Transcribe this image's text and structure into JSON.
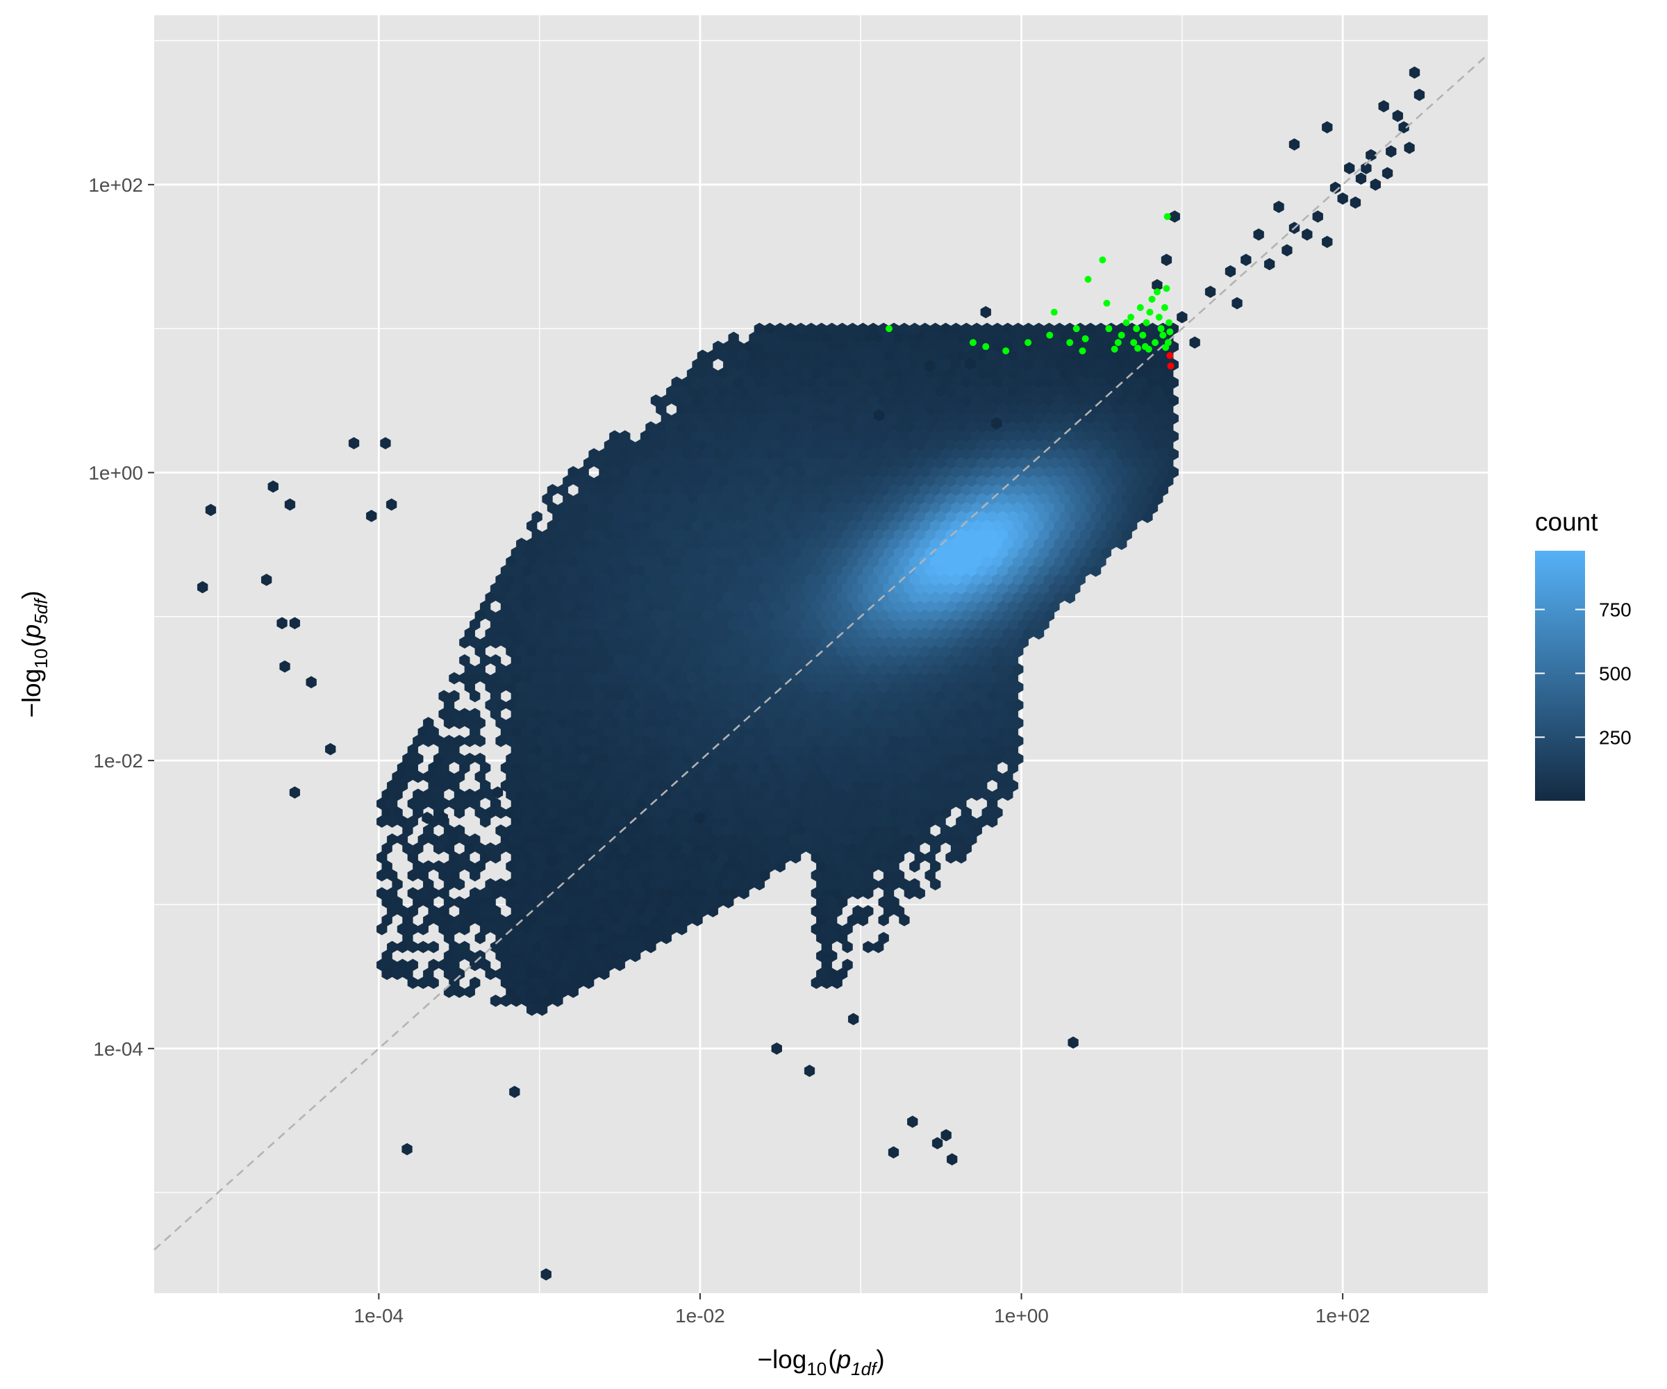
{
  "chart_data": {
    "type": "heatmap",
    "subtype": "hexbin",
    "scale": {
      "x": "log10",
      "y": "log10"
    },
    "xlim": [
      4e-06,
      800
    ],
    "ylim": [
      2e-06,
      1500
    ],
    "x_ticks": [
      0.0001,
      0.01,
      1,
      100
    ],
    "x_tick_labels": [
      "1e-04",
      "1e-02",
      "1e+00",
      "1e+02"
    ],
    "y_ticks": [
      0.0001,
      0.01,
      1,
      100
    ],
    "y_tick_labels": [
      "1e-04",
      "1e-02",
      "1e+00",
      "1e+02"
    ],
    "xlabel": {
      "prefix": "−log",
      "subscript": "10",
      "open": "(",
      "var": "p",
      "var_subscript": "1df",
      "close": ")"
    },
    "ylabel": {
      "prefix": "−log",
      "subscript": "10",
      "open": "(",
      "var": "p",
      "var_subscript": "5df",
      "close": ")"
    },
    "grid": true,
    "panel_background": "#e5e5e5",
    "reference_line": {
      "slope": 1,
      "intercept": 0,
      "style": "dashed",
      "color": "#b3b3b3"
    },
    "legend": {
      "title": "count",
      "position": "right",
      "ticks": [
        250,
        500,
        750
      ],
      "tick_labels": [
        "250",
        "500",
        "750"
      ],
      "range": [
        1,
        980
      ],
      "color_low": "#132b43",
      "color_high": "#56b1f7"
    },
    "density_model": {
      "core_center": [
        0.5,
        0.3
      ],
      "approx_peak_count": 950
    },
    "outlier_hexes": [
      [
        9e-06,
        0.55
      ],
      [
        8e-06,
        0.16
      ],
      [
        2.2e-05,
        0.8
      ],
      [
        2.8e-05,
        0.6
      ],
      [
        2e-05,
        0.18
      ],
      [
        2.5e-05,
        0.09
      ],
      [
        3e-05,
        0.09
      ],
      [
        2.6e-05,
        0.045
      ],
      [
        3.8e-05,
        0.035
      ],
      [
        5e-05,
        0.012
      ],
      [
        3e-05,
        0.006
      ],
      [
        7e-05,
        1.6
      ],
      [
        0.00011,
        1.6
      ],
      [
        0.00012,
        0.6
      ],
      [
        9e-05,
        0.5
      ],
      [
        0.00015,
        2e-05
      ],
      [
        0.0007,
        5e-05
      ],
      [
        0.0009,
        0.00035
      ],
      [
        0.0015,
        0.0006
      ],
      [
        0.0011,
        2.7e-06
      ],
      [
        0.03,
        0.0001
      ],
      [
        0.048,
        7e-05
      ],
      [
        0.09,
        0.00016
      ],
      [
        0.16,
        1.9e-05
      ],
      [
        0.21,
        3.1e-05
      ],
      [
        0.3,
        2.2e-05
      ],
      [
        0.34,
        2.5e-05
      ],
      [
        0.37,
        1.7e-05
      ],
      [
        2.1,
        0.00011
      ],
      [
        0.27,
        5.5
      ],
      [
        0.48,
        5.7
      ],
      [
        0.6,
        13
      ],
      [
        0.13,
        2.5
      ],
      [
        0.7,
        2.2
      ],
      [
        0.01,
        0.004
      ],
      [
        0.0002,
        0.004
      ],
      [
        0.00025,
        0.004
      ],
      [
        0.00055,
        0.006
      ],
      [
        0.0012,
        0.002
      ]
    ],
    "high_end_hexes": [
      [
        280,
        600
      ],
      [
        180,
        350
      ],
      [
        220,
        300
      ],
      [
        80,
        250
      ],
      [
        50,
        190
      ],
      [
        260,
        180
      ],
      [
        200,
        170
      ],
      [
        110,
        130
      ],
      [
        140,
        130
      ],
      [
        190,
        120
      ],
      [
        130,
        110
      ],
      [
        160,
        100
      ],
      [
        90,
        95
      ],
      [
        100,
        80
      ],
      [
        70,
        60
      ],
      [
        40,
        70
      ],
      [
        120,
        75
      ],
      [
        60,
        45
      ],
      [
        50,
        50
      ],
      [
        30,
        45
      ],
      [
        80,
        40
      ],
      [
        25,
        30
      ],
      [
        45,
        35
      ],
      [
        20,
        25
      ],
      [
        35,
        28
      ],
      [
        15,
        18
      ],
      [
        22,
        15
      ],
      [
        10,
        12
      ],
      [
        12,
        8
      ],
      [
        9,
        60
      ],
      [
        8,
        30
      ],
      [
        7,
        20
      ],
      [
        300,
        420
      ],
      [
        240,
        250
      ],
      [
        150,
        160
      ]
    ],
    "series": [
      {
        "name": "green",
        "color": "#00ff00",
        "points": [
          [
            0.15,
            10
          ],
          [
            0.5,
            8
          ],
          [
            0.6,
            7.5
          ],
          [
            0.8,
            7
          ],
          [
            1.1,
            8
          ],
          [
            1.5,
            9
          ],
          [
            1.6,
            13
          ],
          [
            2,
            8
          ],
          [
            2.2,
            10
          ],
          [
            2.4,
            7
          ],
          [
            2.5,
            8.5
          ],
          [
            2.6,
            22
          ],
          [
            3.2,
            30
          ],
          [
            3.4,
            15
          ],
          [
            3.5,
            10
          ],
          [
            3.8,
            7.2
          ],
          [
            4,
            8
          ],
          [
            4.2,
            9
          ],
          [
            4.5,
            11
          ],
          [
            4.8,
            12
          ],
          [
            5,
            8
          ],
          [
            5.2,
            10
          ],
          [
            5.5,
            14
          ],
          [
            5.7,
            9
          ],
          [
            5.9,
            7.5
          ],
          [
            6,
            11
          ],
          [
            6.3,
            13
          ],
          [
            6.5,
            16
          ],
          [
            6.8,
            8
          ],
          [
            7,
            18
          ],
          [
            7.2,
            12
          ],
          [
            7.4,
            10
          ],
          [
            7.6,
            9
          ],
          [
            7.8,
            14
          ],
          [
            7.9,
            7.4
          ],
          [
            8,
            19
          ],
          [
            8.1,
            60
          ],
          [
            8.2,
            8
          ],
          [
            8.3,
            11
          ],
          [
            8.4,
            9.5
          ],
          [
            6.2,
            7.2
          ],
          [
            5.3,
            7.3
          ]
        ]
      },
      {
        "name": "red",
        "color": "#ff0000",
        "points": [
          [
            8.4,
            6.5
          ],
          [
            8.5,
            5.5
          ]
        ]
      }
    ]
  }
}
